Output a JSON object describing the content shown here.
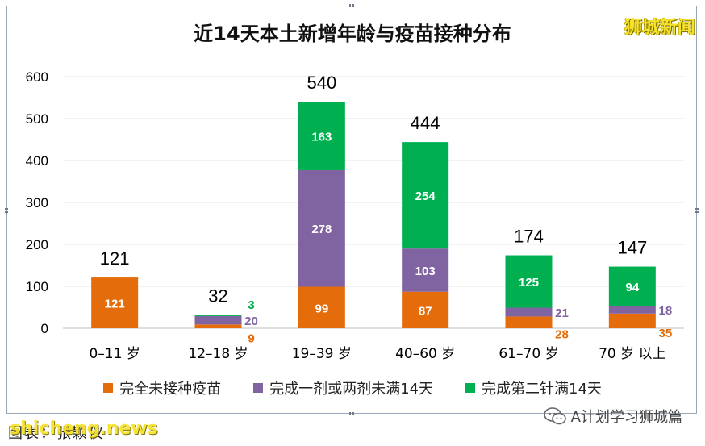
{
  "title": "近14天本土新增年龄与疫苗接种分布",
  "brand": "狮城新闻",
  "caption": "图表：张颖仪",
  "watermark": "shicheng.news",
  "wechat_label": "A计划学习狮城篇",
  "colors": {
    "unvaccinated": "#e46c0a",
    "partial": "#8064a2",
    "full": "#00b050",
    "axis_text": "#000000"
  },
  "chart_data": {
    "type": "bar",
    "stacked": true,
    "title": "近14天本土新增年龄与疫苗接种分布",
    "categories": [
      "0–11 岁",
      "12–18 岁",
      "19–39 岁",
      "40–60 岁",
      "61–70 岁",
      "70 岁 以上"
    ],
    "series": [
      {
        "name": "完全未接种疫苗",
        "values": [
          121,
          9,
          99,
          87,
          28,
          35
        ]
      },
      {
        "name": "完成一剂或两剂未满14天",
        "values": [
          0,
          20,
          278,
          103,
          21,
          18
        ]
      },
      {
        "name": "完成第二针满14天",
        "values": [
          0,
          3,
          163,
          254,
          125,
          94
        ]
      }
    ],
    "totals": [
      121,
      32,
      540,
      444,
      174,
      147
    ],
    "ylim": [
      0,
      600
    ],
    "yticks": [
      0,
      100,
      200,
      300,
      400,
      500,
      600
    ],
    "grid": true,
    "legend_position": "bottom"
  }
}
